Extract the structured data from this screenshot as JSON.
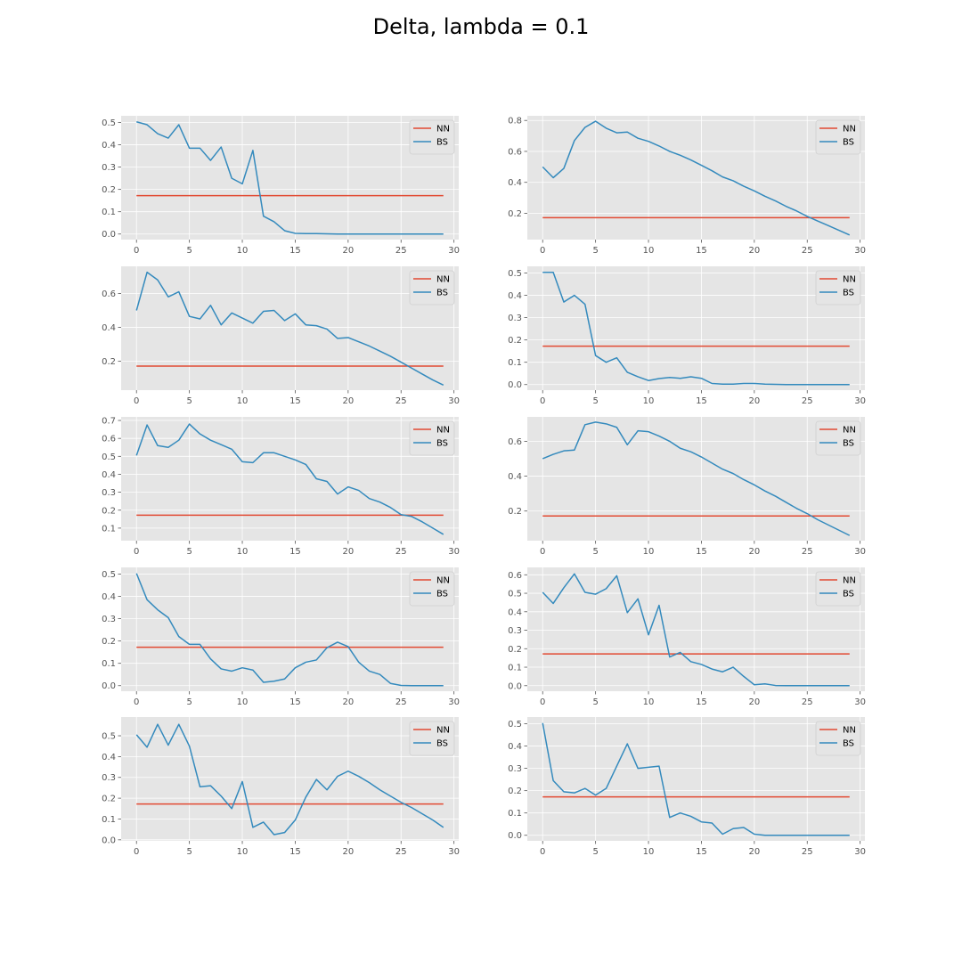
{
  "title": "Delta, lambda = 0.1",
  "colors": {
    "NN": "#E24A33",
    "BS": "#348ABD",
    "panel_bg": "#E5E5E5",
    "grid": "#FFFFFF"
  },
  "chart_data": [
    {
      "type": "line",
      "xlim": [
        -1.45,
        30.45
      ],
      "ylim": [
        -0.025,
        0.53
      ],
      "yticks": [
        0.0,
        0.1,
        0.2,
        0.3,
        0.4,
        0.5
      ],
      "ytick_labels": [
        "0.0",
        "0.1",
        "0.2",
        "0.3",
        "0.4",
        "0.5"
      ],
      "xticks": [
        0,
        5,
        10,
        15,
        20,
        25,
        30
      ],
      "xtick_labels": [
        "0",
        "5",
        "10",
        "15",
        "20",
        "25",
        "30"
      ],
      "legend": "upper right",
      "series": [
        {
          "name": "NN",
          "x": [
            0,
            29
          ],
          "y": [
            0.172,
            0.172
          ]
        },
        {
          "name": "BS",
          "x": [
            0,
            1,
            2,
            3,
            4,
            5,
            6,
            7,
            8,
            9,
            10,
            11,
            12,
            13,
            14,
            15,
            16,
            17,
            18,
            19,
            20,
            21,
            22,
            23,
            24,
            25,
            26,
            27,
            28,
            29
          ],
          "y": [
            0.503,
            0.49,
            0.45,
            0.43,
            0.49,
            0.385,
            0.385,
            0.33,
            0.39,
            0.25,
            0.225,
            0.375,
            0.08,
            0.055,
            0.015,
            0.003,
            0.002,
            0.002,
            0.001,
            0,
            0,
            0,
            0,
            0,
            0,
            0,
            0,
            0,
            0,
            0
          ]
        }
      ]
    },
    {
      "type": "line",
      "xlim": [
        -1.45,
        30.45
      ],
      "ylim": [
        0.03,
        0.83
      ],
      "yticks": [
        0.2,
        0.4,
        0.6,
        0.8
      ],
      "ytick_labels": [
        "0.2",
        "0.4",
        "0.6",
        "0.8"
      ],
      "xticks": [
        0,
        5,
        10,
        15,
        20,
        25,
        30
      ],
      "xtick_labels": [
        "0",
        "5",
        "10",
        "15",
        "20",
        "25",
        "30"
      ],
      "legend": "upper right",
      "series": [
        {
          "name": "NN",
          "x": [
            0,
            29
          ],
          "y": [
            0.172,
            0.172
          ]
        },
        {
          "name": "BS",
          "x": [
            0,
            1,
            2,
            3,
            4,
            5,
            6,
            7,
            8,
            9,
            10,
            11,
            12,
            13,
            14,
            15,
            16,
            17,
            18,
            19,
            20,
            21,
            22,
            23,
            24,
            25,
            26,
            27,
            28,
            29
          ],
          "y": [
            0.5,
            0.43,
            0.49,
            0.67,
            0.755,
            0.795,
            0.75,
            0.72,
            0.725,
            0.685,
            0.665,
            0.635,
            0.6,
            0.575,
            0.545,
            0.51,
            0.475,
            0.435,
            0.41,
            0.375,
            0.345,
            0.31,
            0.28,
            0.245,
            0.215,
            0.18,
            0.15,
            0.12,
            0.09,
            0.06
          ]
        }
      ]
    },
    {
      "type": "line",
      "xlim": [
        -1.45,
        30.45
      ],
      "ylim": [
        0.03,
        0.76
      ],
      "yticks": [
        0.2,
        0.4,
        0.6
      ],
      "ytick_labels": [
        "0.2",
        "0.4",
        "0.6"
      ],
      "xticks": [
        0,
        5,
        10,
        15,
        20,
        25,
        30
      ],
      "xtick_labels": [
        "0",
        "5",
        "10",
        "15",
        "20",
        "25",
        "30"
      ],
      "legend": "upper right",
      "series": [
        {
          "name": "NN",
          "x": [
            0,
            29
          ],
          "y": [
            0.172,
            0.172
          ]
        },
        {
          "name": "BS",
          "x": [
            0,
            1,
            2,
            3,
            4,
            5,
            6,
            7,
            8,
            9,
            10,
            11,
            12,
            13,
            14,
            15,
            16,
            17,
            18,
            19,
            20,
            21,
            22,
            23,
            24,
            25,
            26,
            27,
            28,
            29
          ],
          "y": [
            0.5,
            0.725,
            0.68,
            0.58,
            0.61,
            0.465,
            0.45,
            0.53,
            0.415,
            0.485,
            0.455,
            0.425,
            0.495,
            0.5,
            0.44,
            0.48,
            0.415,
            0.41,
            0.39,
            0.335,
            0.34,
            0.315,
            0.29,
            0.26,
            0.23,
            0.195,
            0.16,
            0.125,
            0.09,
            0.06
          ]
        }
      ]
    },
    {
      "type": "line",
      "xlim": [
        -1.45,
        30.45
      ],
      "ylim": [
        -0.025,
        0.53
      ],
      "yticks": [
        0.0,
        0.1,
        0.2,
        0.3,
        0.4,
        0.5
      ],
      "ytick_labels": [
        "0.0",
        "0.1",
        "0.2",
        "0.3",
        "0.4",
        "0.5"
      ],
      "xticks": [
        0,
        5,
        10,
        15,
        20,
        25,
        30
      ],
      "xtick_labels": [
        "0",
        "5",
        "10",
        "15",
        "20",
        "25",
        "30"
      ],
      "legend": "upper right",
      "series": [
        {
          "name": "NN",
          "x": [
            0,
            29
          ],
          "y": [
            0.172,
            0.172
          ]
        },
        {
          "name": "BS",
          "x": [
            0,
            1,
            2,
            3,
            4,
            5,
            6,
            7,
            8,
            9,
            10,
            11,
            12,
            13,
            14,
            15,
            16,
            17,
            18,
            19,
            20,
            21,
            22,
            23,
            24,
            25,
            26,
            27,
            28,
            29
          ],
          "y": [
            0.503,
            0.503,
            0.37,
            0.4,
            0.36,
            0.13,
            0.1,
            0.12,
            0.055,
            0.035,
            0.018,
            0.027,
            0.032,
            0.028,
            0.035,
            0.028,
            0.005,
            0.002,
            0.002,
            0.005,
            0.005,
            0.002,
            0.001,
            0,
            0,
            0,
            0,
            0,
            0,
            0
          ]
        }
      ]
    },
    {
      "type": "line",
      "xlim": [
        -1.45,
        30.45
      ],
      "ylim": [
        0.03,
        0.72
      ],
      "yticks": [
        0.1,
        0.2,
        0.3,
        0.4,
        0.5,
        0.6,
        0.7
      ],
      "ytick_labels": [
        "0.1",
        "0.2",
        "0.3",
        "0.4",
        "0.5",
        "0.6",
        "0.7"
      ],
      "xticks": [
        0,
        5,
        10,
        15,
        20,
        25,
        30
      ],
      "xtick_labels": [
        "0",
        "5",
        "10",
        "15",
        "20",
        "25",
        "30"
      ],
      "legend": "upper right",
      "series": [
        {
          "name": "NN",
          "x": [
            0,
            29
          ],
          "y": [
            0.172,
            0.172
          ]
        },
        {
          "name": "BS",
          "x": [
            0,
            1,
            2,
            3,
            4,
            5,
            6,
            7,
            8,
            9,
            10,
            11,
            12,
            13,
            14,
            15,
            16,
            17,
            18,
            19,
            20,
            21,
            22,
            23,
            24,
            25,
            26,
            27,
            28,
            29
          ],
          "y": [
            0.505,
            0.675,
            0.56,
            0.55,
            0.59,
            0.68,
            0.625,
            0.59,
            0.565,
            0.54,
            0.47,
            0.465,
            0.52,
            0.52,
            0.5,
            0.48,
            0.455,
            0.375,
            0.36,
            0.29,
            0.33,
            0.31,
            0.265,
            0.245,
            0.215,
            0.175,
            0.165,
            0.135,
            0.1,
            0.065
          ]
        }
      ]
    },
    {
      "type": "line",
      "xlim": [
        -1.45,
        30.45
      ],
      "ylim": [
        0.03,
        0.74
      ],
      "yticks": [
        0.2,
        0.4,
        0.6
      ],
      "ytick_labels": [
        "0.2",
        "0.4",
        "0.6"
      ],
      "xticks": [
        0,
        5,
        10,
        15,
        20,
        25,
        30
      ],
      "xtick_labels": [
        "0",
        "5",
        "10",
        "15",
        "20",
        "25",
        "30"
      ],
      "legend": "upper right",
      "series": [
        {
          "name": "NN",
          "x": [
            0,
            29
          ],
          "y": [
            0.172,
            0.172
          ]
        },
        {
          "name": "BS",
          "x": [
            0,
            1,
            2,
            3,
            4,
            5,
            6,
            7,
            8,
            9,
            10,
            11,
            12,
            13,
            14,
            15,
            16,
            17,
            18,
            19,
            20,
            21,
            22,
            23,
            24,
            25,
            26,
            27,
            28,
            29
          ],
          "y": [
            0.5,
            0.525,
            0.545,
            0.55,
            0.695,
            0.71,
            0.7,
            0.68,
            0.58,
            0.66,
            0.655,
            0.63,
            0.6,
            0.56,
            0.54,
            0.51,
            0.475,
            0.44,
            0.415,
            0.38,
            0.35,
            0.315,
            0.285,
            0.25,
            0.215,
            0.185,
            0.15,
            0.12,
            0.09,
            0.06
          ]
        }
      ]
    },
    {
      "type": "line",
      "xlim": [
        -1.45,
        30.45
      ],
      "ylim": [
        -0.025,
        0.53
      ],
      "yticks": [
        0.0,
        0.1,
        0.2,
        0.3,
        0.4,
        0.5
      ],
      "ytick_labels": [
        "0.0",
        "0.1",
        "0.2",
        "0.3",
        "0.4",
        "0.5"
      ],
      "xticks": [
        0,
        5,
        10,
        15,
        20,
        25,
        30
      ],
      "xtick_labels": [
        "0",
        "5",
        "10",
        "15",
        "20",
        "25",
        "30"
      ],
      "legend": "upper right",
      "series": [
        {
          "name": "NN",
          "x": [
            0,
            29
          ],
          "y": [
            0.172,
            0.172
          ]
        },
        {
          "name": "BS",
          "x": [
            0,
            1,
            2,
            3,
            4,
            5,
            6,
            7,
            8,
            9,
            10,
            11,
            12,
            13,
            14,
            15,
            16,
            17,
            18,
            19,
            20,
            21,
            22,
            23,
            24,
            25,
            26,
            27,
            28,
            29
          ],
          "y": [
            0.503,
            0.385,
            0.34,
            0.305,
            0.22,
            0.185,
            0.185,
            0.12,
            0.075,
            0.065,
            0.08,
            0.07,
            0.015,
            0.02,
            0.03,
            0.08,
            0.105,
            0.115,
            0.17,
            0.195,
            0.175,
            0.105,
            0.065,
            0.05,
            0.01,
            0.001,
            0,
            0,
            0,
            0
          ]
        }
      ]
    },
    {
      "type": "line",
      "xlim": [
        -1.45,
        30.45
      ],
      "ylim": [
        -0.03,
        0.64
      ],
      "yticks": [
        0.0,
        0.1,
        0.2,
        0.3,
        0.4,
        0.5,
        0.6
      ],
      "ytick_labels": [
        "0.0",
        "0.1",
        "0.2",
        "0.3",
        "0.4",
        "0.5",
        "0.6"
      ],
      "xticks": [
        0,
        5,
        10,
        15,
        20,
        25,
        30
      ],
      "xtick_labels": [
        "0",
        "5",
        "10",
        "15",
        "20",
        "25",
        "30"
      ],
      "legend": "upper right",
      "series": [
        {
          "name": "NN",
          "x": [
            0,
            29
          ],
          "y": [
            0.172,
            0.172
          ]
        },
        {
          "name": "BS",
          "x": [
            0,
            1,
            2,
            3,
            4,
            5,
            6,
            7,
            8,
            9,
            10,
            11,
            12,
            13,
            14,
            15,
            16,
            17,
            18,
            19,
            20,
            21,
            22,
            23,
            24,
            25,
            26,
            27,
            28,
            29
          ],
          "y": [
            0.505,
            0.445,
            0.53,
            0.605,
            0.505,
            0.495,
            0.525,
            0.595,
            0.395,
            0.47,
            0.275,
            0.435,
            0.155,
            0.18,
            0.13,
            0.115,
            0.09,
            0.075,
            0.1,
            0.05,
            0.005,
            0.01,
            0.001,
            0,
            0,
            0,
            0,
            0,
            0,
            0
          ]
        }
      ]
    },
    {
      "type": "line",
      "xlim": [
        -1.45,
        30.45
      ],
      "ylim": [
        -0.005,
        0.59
      ],
      "yticks": [
        0.0,
        0.1,
        0.2,
        0.3,
        0.4,
        0.5
      ],
      "ytick_labels": [
        "0.0",
        "0.1",
        "0.2",
        "0.3",
        "0.4",
        "0.5"
      ],
      "xticks": [
        0,
        5,
        10,
        15,
        20,
        25,
        30
      ],
      "xtick_labels": [
        "0",
        "5",
        "10",
        "15",
        "20",
        "25",
        "30"
      ],
      "legend": "upper right",
      "series": [
        {
          "name": "NN",
          "x": [
            0,
            29
          ],
          "y": [
            0.172,
            0.172
          ]
        },
        {
          "name": "BS",
          "x": [
            0,
            1,
            2,
            3,
            4,
            5,
            6,
            7,
            8,
            9,
            10,
            11,
            12,
            13,
            14,
            15,
            16,
            17,
            18,
            19,
            20,
            21,
            22,
            23,
            24,
            25,
            26,
            27,
            28,
            29
          ],
          "y": [
            0.505,
            0.445,
            0.555,
            0.455,
            0.555,
            0.45,
            0.255,
            0.26,
            0.21,
            0.15,
            0.28,
            0.06,
            0.085,
            0.025,
            0.035,
            0.095,
            0.205,
            0.29,
            0.24,
            0.305,
            0.33,
            0.305,
            0.275,
            0.24,
            0.21,
            0.18,
            0.155,
            0.125,
            0.095,
            0.06
          ]
        }
      ]
    },
    {
      "type": "line",
      "xlim": [
        -1.45,
        30.45
      ],
      "ylim": [
        -0.025,
        0.53
      ],
      "yticks": [
        0.0,
        0.1,
        0.2,
        0.3,
        0.4,
        0.5
      ],
      "ytick_labels": [
        "0.0",
        "0.1",
        "0.2",
        "0.3",
        "0.4",
        "0.5"
      ],
      "xticks": [
        0,
        5,
        10,
        15,
        20,
        25,
        30
      ],
      "xtick_labels": [
        "0",
        "5",
        "10",
        "15",
        "20",
        "25",
        "30"
      ],
      "legend": "upper right",
      "series": [
        {
          "name": "NN",
          "x": [
            0,
            29
          ],
          "y": [
            0.172,
            0.172
          ]
        },
        {
          "name": "BS",
          "x": [
            0,
            1,
            2,
            3,
            4,
            5,
            6,
            7,
            8,
            9,
            10,
            11,
            12,
            13,
            14,
            15,
            16,
            17,
            18,
            19,
            20,
            21,
            22,
            23,
            24,
            25,
            26,
            27,
            28,
            29
          ],
          "y": [
            0.503,
            0.245,
            0.195,
            0.19,
            0.21,
            0.18,
            0.21,
            0.31,
            0.41,
            0.3,
            0.305,
            0.31,
            0.08,
            0.1,
            0.085,
            0.06,
            0.055,
            0.005,
            0.03,
            0.035,
            0.005,
            0,
            0,
            0,
            0,
            0,
            0,
            0,
            0,
            0
          ]
        }
      ]
    }
  ]
}
